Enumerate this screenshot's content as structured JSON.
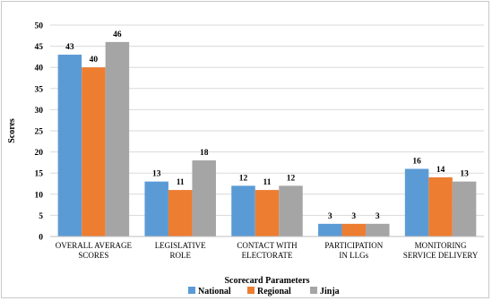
{
  "chart_data": {
    "type": "bar",
    "title": "",
    "xlabel": "Scorecard Parameters",
    "ylabel": "Scores",
    "ylim": [
      0,
      50
    ],
    "yticks": [
      0,
      5,
      10,
      15,
      20,
      25,
      30,
      35,
      40,
      45,
      50
    ],
    "grid": true,
    "legend_position": "bottom",
    "categories": [
      [
        "OVERALL AVERAGE",
        "SCORES"
      ],
      [
        "LEGISLATIVE",
        "ROLE"
      ],
      [
        "CONTACT WITH",
        "ELECTORATE"
      ],
      [
        "PARTICIPATION",
        "IN LLGs"
      ],
      [
        "MONITORING",
        "SERVICE DELIVERY"
      ]
    ],
    "series": [
      {
        "name": "National",
        "color": "#5B9BD5",
        "values": [
          43,
          13,
          12,
          3,
          16
        ]
      },
      {
        "name": "Regional",
        "color": "#ED7D31",
        "values": [
          40,
          11,
          11,
          3,
          14
        ]
      },
      {
        "name": "Jinja",
        "color": "#A5A5A5",
        "values": [
          46,
          18,
          12,
          3,
          13
        ]
      }
    ]
  }
}
